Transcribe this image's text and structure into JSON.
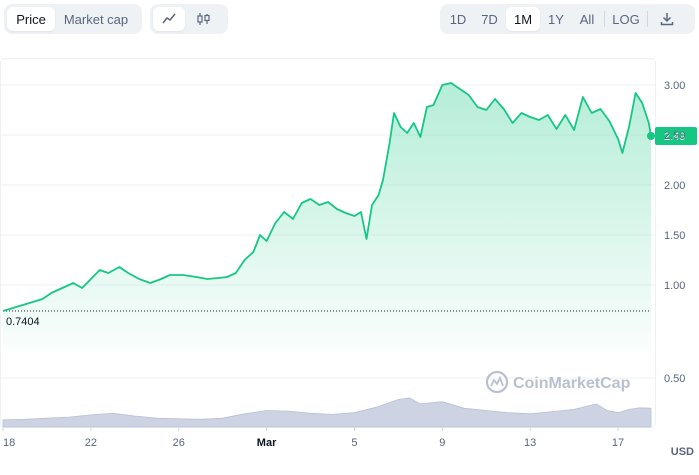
{
  "toolbar": {
    "metric_tabs": [
      "Price",
      "Market cap"
    ],
    "metric_active": "Price",
    "chart_types": [
      "line-chart-icon",
      "candlestick-icon"
    ],
    "ranges": [
      "1D",
      "7D",
      "1M",
      "1Y",
      "All"
    ],
    "range_active": "1M",
    "log_label": "LOG",
    "download_icon": "download-icon"
  },
  "watermark": "CoinMarketCap",
  "unit_label": "USD",
  "colors": {
    "line": "#16c784",
    "baseline": "#1e2433",
    "volume": "#cdd3e3",
    "label_bg": "#16c784"
  },
  "chart_data": {
    "type": "area",
    "y_ticks": [
      "3.00",
      "2.50",
      "2.00",
      "1.50",
      "1.00",
      "0.50"
    ],
    "y_tick_values": [
      3.0,
      2.5,
      2.0,
      1.5,
      1.0,
      0.5
    ],
    "ylim": [
      0.33,
      3.3
    ],
    "x_ticks": [
      "18",
      "22",
      "26",
      "Mar",
      "5",
      "9",
      "13",
      "17"
    ],
    "x_tick_days": [
      0,
      4,
      8,
      12,
      16,
      20,
      24,
      28
    ],
    "x_range_days": [
      0,
      29.5
    ],
    "baseline": 0.7404,
    "baseline_label": "0.7404",
    "current_price": 2.49,
    "current_label": "2.49",
    "price_series": [
      [
        0,
        0.74
      ],
      [
        0.6,
        0.78
      ],
      [
        1.2,
        0.82
      ],
      [
        1.8,
        0.86
      ],
      [
        2.2,
        0.92
      ],
      [
        2.8,
        0.98
      ],
      [
        3.2,
        1.02
      ],
      [
        3.6,
        0.97
      ],
      [
        4.0,
        1.06
      ],
      [
        4.4,
        1.15
      ],
      [
        4.8,
        1.12
      ],
      [
        5.3,
        1.18
      ],
      [
        5.7,
        1.12
      ],
      [
        6.2,
        1.06
      ],
      [
        6.7,
        1.02
      ],
      [
        7.2,
        1.06
      ],
      [
        7.6,
        1.1
      ],
      [
        8.2,
        1.1
      ],
      [
        8.8,
        1.08
      ],
      [
        9.3,
        1.06
      ],
      [
        9.8,
        1.07
      ],
      [
        10.2,
        1.08
      ],
      [
        10.6,
        1.12
      ],
      [
        11.0,
        1.25
      ],
      [
        11.4,
        1.33
      ],
      [
        11.7,
        1.5
      ],
      [
        12.0,
        1.44
      ],
      [
        12.4,
        1.62
      ],
      [
        12.8,
        1.73
      ],
      [
        13.2,
        1.66
      ],
      [
        13.6,
        1.82
      ],
      [
        14.0,
        1.86
      ],
      [
        14.4,
        1.8
      ],
      [
        14.8,
        1.83
      ],
      [
        15.2,
        1.76
      ],
      [
        15.6,
        1.72
      ],
      [
        16.0,
        1.69
      ],
      [
        16.3,
        1.73
      ],
      [
        16.55,
        1.46
      ],
      [
        16.8,
        1.8
      ],
      [
        17.1,
        1.9
      ],
      [
        17.3,
        2.05
      ],
      [
        17.6,
        2.42
      ],
      [
        17.8,
        2.72
      ],
      [
        18.1,
        2.58
      ],
      [
        18.4,
        2.52
      ],
      [
        18.7,
        2.62
      ],
      [
        19.0,
        2.48
      ],
      [
        19.3,
        2.78
      ],
      [
        19.6,
        2.8
      ],
      [
        20.0,
        3.0
      ],
      [
        20.4,
        3.02
      ],
      [
        20.8,
        2.96
      ],
      [
        21.2,
        2.9
      ],
      [
        21.6,
        2.78
      ],
      [
        22.0,
        2.75
      ],
      [
        22.4,
        2.86
      ],
      [
        22.8,
        2.76
      ],
      [
        23.2,
        2.62
      ],
      [
        23.6,
        2.72
      ],
      [
        24.0,
        2.68
      ],
      [
        24.4,
        2.65
      ],
      [
        24.8,
        2.7
      ],
      [
        25.2,
        2.56
      ],
      [
        25.6,
        2.7
      ],
      [
        26.0,
        2.55
      ],
      [
        26.4,
        2.88
      ],
      [
        26.8,
        2.72
      ],
      [
        27.2,
        2.76
      ],
      [
        27.6,
        2.64
      ],
      [
        28.0,
        2.46
      ],
      [
        28.2,
        2.32
      ],
      [
        28.5,
        2.58
      ],
      [
        28.8,
        2.92
      ],
      [
        29.1,
        2.82
      ],
      [
        29.4,
        2.62
      ],
      [
        29.5,
        2.49
      ]
    ],
    "volume_series": [
      [
        0,
        0.13
      ],
      [
        1,
        0.14
      ],
      [
        2,
        0.16
      ],
      [
        3,
        0.18
      ],
      [
        4,
        0.22
      ],
      [
        5,
        0.25
      ],
      [
        6,
        0.2
      ],
      [
        7,
        0.16
      ],
      [
        8,
        0.15
      ],
      [
        9,
        0.14
      ],
      [
        10,
        0.16
      ],
      [
        11,
        0.24
      ],
      [
        12,
        0.3
      ],
      [
        13,
        0.29
      ],
      [
        14,
        0.25
      ],
      [
        15,
        0.23
      ],
      [
        16,
        0.26
      ],
      [
        17,
        0.36
      ],
      [
        18,
        0.5
      ],
      [
        18.5,
        0.53
      ],
      [
        19,
        0.42
      ],
      [
        20,
        0.46
      ],
      [
        21,
        0.34
      ],
      [
        22,
        0.3
      ],
      [
        23,
        0.26
      ],
      [
        24,
        0.24
      ],
      [
        25,
        0.28
      ],
      [
        26,
        0.32
      ],
      [
        27,
        0.42
      ],
      [
        27.5,
        0.3
      ],
      [
        28,
        0.26
      ],
      [
        28.5,
        0.32
      ],
      [
        29,
        0.35
      ],
      [
        29.5,
        0.34
      ]
    ]
  }
}
